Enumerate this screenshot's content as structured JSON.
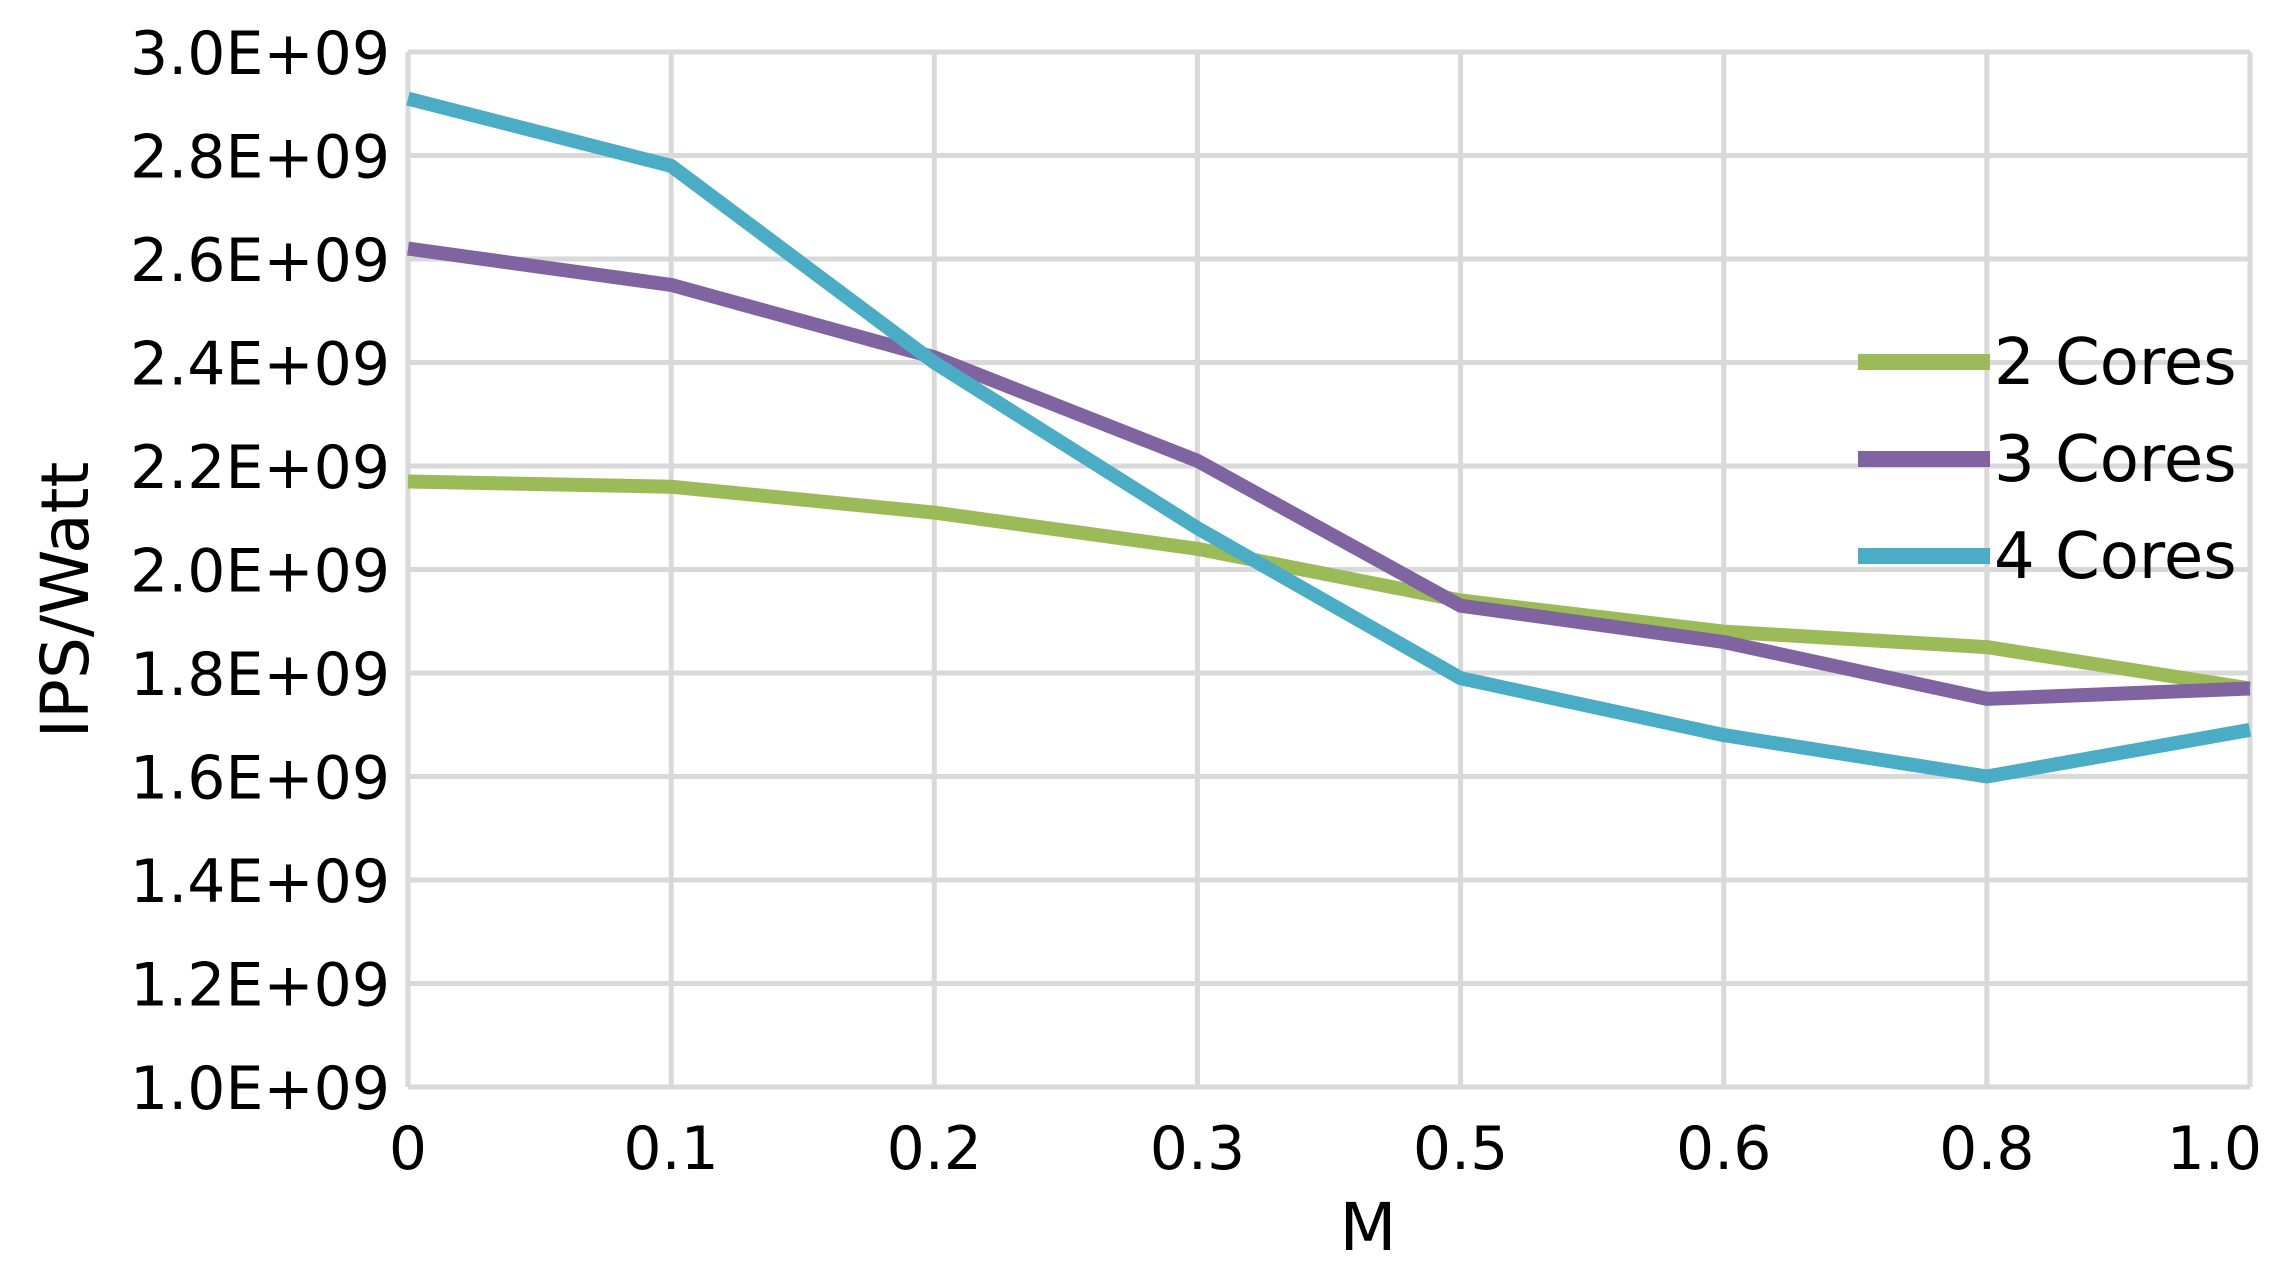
{
  "chart_data": {
    "type": "line",
    "title": "",
    "xlabel": "M",
    "ylabel": "IPS/Watt",
    "categories": [
      "0",
      "0.1",
      "0.2",
      "0.3",
      "0.5",
      "0.6",
      "0.8",
      "1.0"
    ],
    "y_ticks": [
      "1.0E+09",
      "1.2E+09",
      "1.4E+09",
      "1.6E+09",
      "1.8E+09",
      "2.0E+09",
      "2.2E+09",
      "2.4E+09",
      "2.6E+09",
      "2.8E+09",
      "3.0E+09"
    ],
    "ylim": [
      1000000000.0,
      3000000000.0
    ],
    "grid": true,
    "legend_position": "right",
    "series": [
      {
        "name": "2 Cores",
        "color": "#9bbb59",
        "values": [
          2170000000.0,
          2160000000.0,
          2110000000.0,
          2040000000.0,
          1940000000.0,
          1880000000.0,
          1850000000.0,
          1770000000.0
        ]
      },
      {
        "name": "3 Cores",
        "color": "#8064a2",
        "values": [
          2620000000.0,
          2550000000.0,
          2410000000.0,
          2210000000.0,
          1930000000.0,
          1860000000.0,
          1750000000.0,
          1770000000.0
        ]
      },
      {
        "name": "4 Cores",
        "color": "#4bacc6",
        "values": [
          2910000000.0,
          2780000000.0,
          2400000000.0,
          2080000000.0,
          1790000000.0,
          1680000000.0,
          1600000000.0,
          1690000000.0
        ]
      }
    ]
  }
}
